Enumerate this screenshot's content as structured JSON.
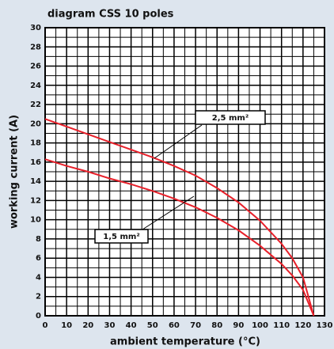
{
  "chart_data": {
    "type": "line",
    "title": "diagram CSS 10 poles",
    "xlabel": "ambient temperature (°C)",
    "ylabel": "working current (A)",
    "x": [
      0,
      10,
      20,
      30,
      40,
      50,
      60,
      70,
      80,
      90,
      100,
      110,
      115,
      120,
      125
    ],
    "series": [
      {
        "name": "2,5 mm²",
        "color": "#e8202a",
        "values": [
          20.5,
          19.7,
          18.9,
          18.1,
          17.3,
          16.5,
          15.6,
          14.6,
          13.3,
          11.8,
          9.9,
          7.5,
          6,
          4,
          0
        ]
      },
      {
        "name": "1,5 mm²",
        "color": "#e8202a",
        "values": [
          16.3,
          15.6,
          15,
          14.3,
          13.7,
          13,
          12.2,
          11.3,
          10.2,
          8.9,
          7.3,
          5.4,
          4.2,
          2.7,
          0
        ]
      }
    ],
    "xlim": [
      0,
      130
    ],
    "ylim": [
      0,
      30
    ],
    "xticks": [
      0,
      10,
      20,
      30,
      40,
      50,
      60,
      70,
      80,
      90,
      100,
      110,
      120,
      130
    ],
    "yticks": [
      0,
      2,
      4,
      6,
      8,
      10,
      12,
      14,
      16,
      18,
      20,
      22,
      24,
      26,
      28,
      30
    ],
    "xminor": [
      5,
      15,
      25,
      35,
      45,
      55,
      65,
      75,
      85,
      95,
      105,
      115,
      125
    ],
    "yminor": [
      1,
      3,
      5,
      7,
      9,
      11,
      13,
      15,
      17,
      19,
      21,
      23,
      25,
      27,
      29
    ],
    "grid": true
  }
}
